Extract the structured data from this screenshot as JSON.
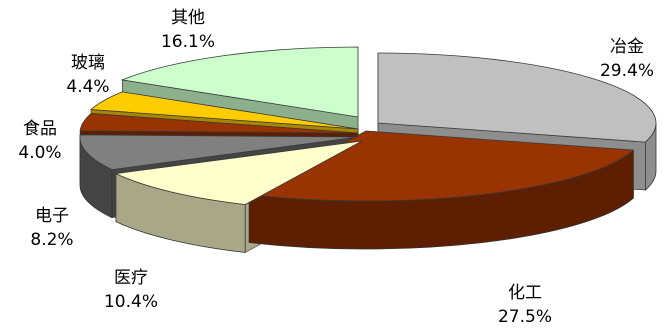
{
  "chart_data": {
    "type": "pie",
    "style": "3d-exploded",
    "slices": [
      {
        "name": "冶金",
        "value": 29.4,
        "label": "29.4%",
        "color": "#c0c0c0",
        "side": "#8e8e8e"
      },
      {
        "name": "化工",
        "value": 27.5,
        "label": "27.5%",
        "color": "#993300",
        "side": "#5e1f00"
      },
      {
        "name": "医疗",
        "value": 10.4,
        "label": "10.4%",
        "color": "#ffffcc",
        "side": "#a8a888"
      },
      {
        "name": "电子",
        "value": 8.2,
        "label": "8.2%",
        "color": "#808080",
        "side": "#444444"
      },
      {
        "name": "食品",
        "value": 4.0,
        "label": "4.0%",
        "color": "#993300",
        "side": "#5e1f00"
      },
      {
        "name": "玻璃",
        "value": 4.4,
        "label": "4.4%",
        "color": "#ffcc00",
        "side": "#a88600"
      },
      {
        "name": "其他",
        "value": 16.1,
        "label": "16.1%",
        "color": "#ccffcc",
        "side": "#8cb08c"
      }
    ]
  }
}
